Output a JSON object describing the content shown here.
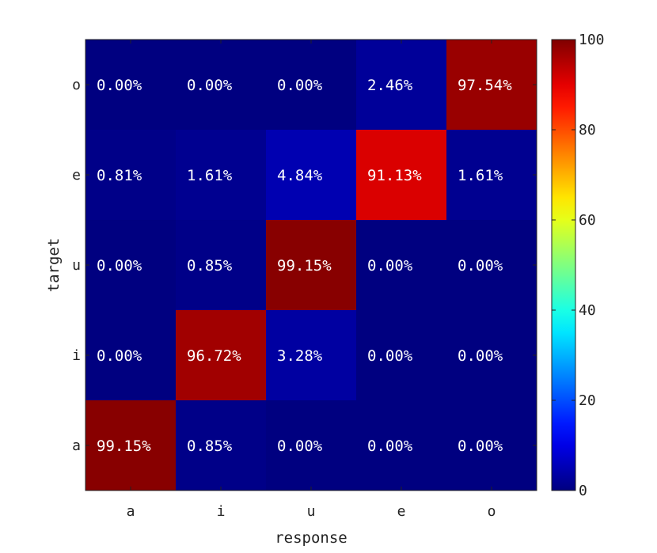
{
  "chart_data": {
    "type": "heatmap",
    "title": "",
    "xlabel": "response",
    "ylabel": "target",
    "x_categories": [
      "a",
      "i",
      "u",
      "e",
      "o"
    ],
    "y_categories": [
      "a",
      "i",
      "u",
      "e",
      "o"
    ],
    "cells": [
      {
        "target": "o",
        "response": "a",
        "value": 0.0,
        "label": "0.00%"
      },
      {
        "target": "o",
        "response": "i",
        "value": 0.0,
        "label": "0.00%"
      },
      {
        "target": "o",
        "response": "u",
        "value": 0.0,
        "label": "0.00%"
      },
      {
        "target": "o",
        "response": "e",
        "value": 2.46,
        "label": "2.46%"
      },
      {
        "target": "o",
        "response": "o",
        "value": 97.54,
        "label": "97.54%"
      },
      {
        "target": "e",
        "response": "a",
        "value": 0.81,
        "label": "0.81%"
      },
      {
        "target": "e",
        "response": "i",
        "value": 1.61,
        "label": "1.61%"
      },
      {
        "target": "e",
        "response": "u",
        "value": 4.84,
        "label": "4.84%"
      },
      {
        "target": "e",
        "response": "e",
        "value": 91.13,
        "label": "91.13%"
      },
      {
        "target": "e",
        "response": "o",
        "value": 1.61,
        "label": "1.61%"
      },
      {
        "target": "u",
        "response": "a",
        "value": 0.0,
        "label": "0.00%"
      },
      {
        "target": "u",
        "response": "i",
        "value": 0.85,
        "label": "0.85%"
      },
      {
        "target": "u",
        "response": "u",
        "value": 99.15,
        "label": "99.15%"
      },
      {
        "target": "u",
        "response": "e",
        "value": 0.0,
        "label": "0.00%"
      },
      {
        "target": "u",
        "response": "o",
        "value": 0.0,
        "label": "0.00%"
      },
      {
        "target": "i",
        "response": "a",
        "value": 0.0,
        "label": "0.00%"
      },
      {
        "target": "i",
        "response": "i",
        "value": 96.72,
        "label": "96.72%"
      },
      {
        "target": "i",
        "response": "u",
        "value": 3.28,
        "label": "3.28%"
      },
      {
        "target": "i",
        "response": "e",
        "value": 0.0,
        "label": "0.00%"
      },
      {
        "target": "i",
        "response": "o",
        "value": 0.0,
        "label": "0.00%"
      },
      {
        "target": "a",
        "response": "a",
        "value": 99.15,
        "label": "99.15%"
      },
      {
        "target": "a",
        "response": "i",
        "value": 0.85,
        "label": "0.85%"
      },
      {
        "target": "a",
        "response": "u",
        "value": 0.0,
        "label": "0.00%"
      },
      {
        "target": "a",
        "response": "e",
        "value": 0.0,
        "label": "0.00%"
      },
      {
        "target": "a",
        "response": "o",
        "value": 0.0,
        "label": "0.00%"
      }
    ],
    "colorbar": {
      "colormap": "jet",
      "range": [
        0,
        100
      ],
      "ticks": [
        0,
        20,
        40,
        60,
        80,
        100
      ]
    },
    "grid": false,
    "legend": "colorbar right"
  }
}
